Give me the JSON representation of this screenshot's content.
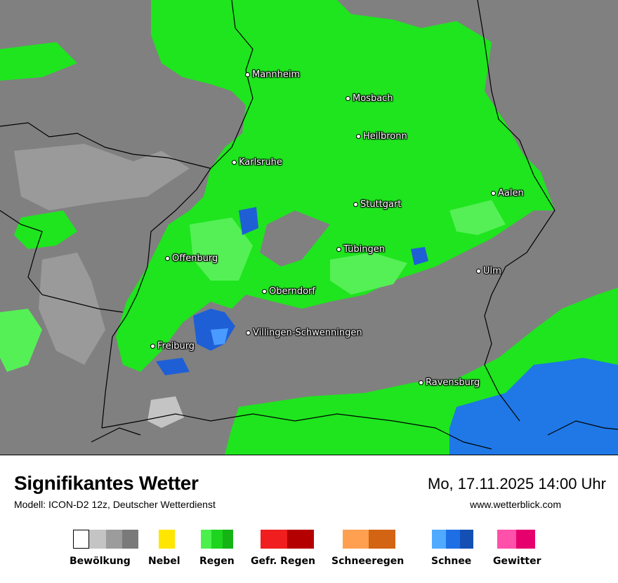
{
  "map": {
    "cities": [
      {
        "name": "Mannheim"
      },
      {
        "name": "Mosbach"
      },
      {
        "name": "Heilbronn"
      },
      {
        "name": "Karlsruhe"
      },
      {
        "name": "Stuttgart"
      },
      {
        "name": "Aalen"
      },
      {
        "name": "Tübingen"
      },
      {
        "name": "Offenburg"
      },
      {
        "name": "Ulm"
      },
      {
        "name": "Oberndorf"
      },
      {
        "name": "Villingen-Schwenningen"
      },
      {
        "name": "Freiburg"
      },
      {
        "name": "Ravensburg"
      }
    ],
    "colors": {
      "cloud": "#808080",
      "rain": "#1ee51e",
      "rain_light": "#55f055",
      "snow": "#1f5fd6",
      "snow_light": "#4a9bff",
      "border": "#000000"
    }
  },
  "footer": {
    "title": "Signifikantes Wetter",
    "model": "Modell: ICON-D2 12z, Deutscher Wetterdienst",
    "datetime": "Mo, 17.11.2025 14:00 Uhr",
    "website": "www.wetterblick.com"
  },
  "legend": [
    {
      "label": "Bewölkung",
      "colors": [
        "#ffffff",
        "#c4c4c4",
        "#9c9c9c",
        "#7a7a7a"
      ]
    },
    {
      "label": "Nebel",
      "colors": [
        "#ffe600"
      ]
    },
    {
      "label": "Regen",
      "colors": [
        "#4cf04c",
        "#1ed41e",
        "#14b414"
      ]
    },
    {
      "label": "Gefr. Regen",
      "colors": [
        "#f01e1e",
        "#b40000"
      ]
    },
    {
      "label": "Schneeregen",
      "colors": [
        "#ffa050",
        "#d26414"
      ]
    },
    {
      "label": "Schnee",
      "colors": [
        "#50aaff",
        "#1e6ee6",
        "#1450b4"
      ]
    },
    {
      "label": "Gewitter",
      "colors": [
        "#ff50aa",
        "#e6006e"
      ]
    }
  ]
}
